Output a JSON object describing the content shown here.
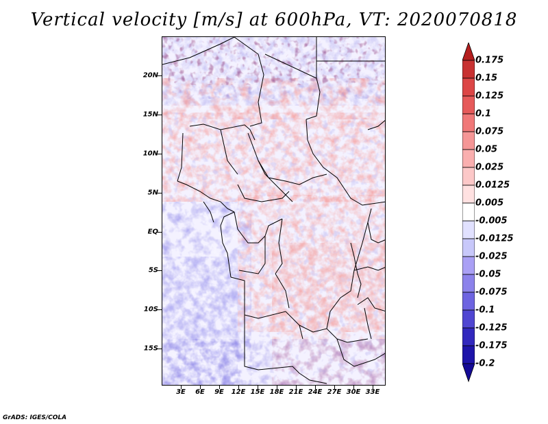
{
  "title": "Vertical velocity [m/s] at 600hPa, VT: 2020070818",
  "map": {
    "lat_labels": [
      "20N",
      "15N",
      "10N",
      "5N",
      "EQ",
      "5S",
      "10S",
      "15S"
    ],
    "lat_values": [
      20,
      15,
      10,
      5,
      0,
      -5,
      -10,
      -15
    ],
    "lon_labels": [
      "3E",
      "6E",
      "9E",
      "12E",
      "15E",
      "18E",
      "21E",
      "24E",
      "27E",
      "30E",
      "33E"
    ],
    "lon_values": [
      3,
      6,
      9,
      12,
      15,
      18,
      21,
      24,
      27,
      30,
      33
    ],
    "lon_range": [
      0,
      35
    ],
    "lat_range": [
      -19.5,
      25
    ]
  },
  "colorbar": {
    "labels": [
      "0.175",
      "0.15",
      "0.125",
      "0.1",
      "0.075",
      "0.05",
      "0.025",
      "0.0125",
      "0.005",
      "-0.005",
      "-0.0125",
      "-0.025",
      "-0.05",
      "-0.075",
      "-0.1",
      "-0.125",
      "-0.175",
      "-0.2"
    ],
    "colors": [
      "#b41e1e",
      "#c83232",
      "#dc4646",
      "#e65a5a",
      "#f07878",
      "#f59696",
      "#faafaf",
      "#fcc8c8",
      "#ffe1e1",
      "#ffffff",
      "#e1e1ff",
      "#c8c8fa",
      "#aaa0f5",
      "#8c82eb",
      "#6e64e1",
      "#5046d2",
      "#3228be",
      "#1e14aa",
      "#140a96"
    ]
  },
  "credit": "GrADS: IGES/COLA"
}
